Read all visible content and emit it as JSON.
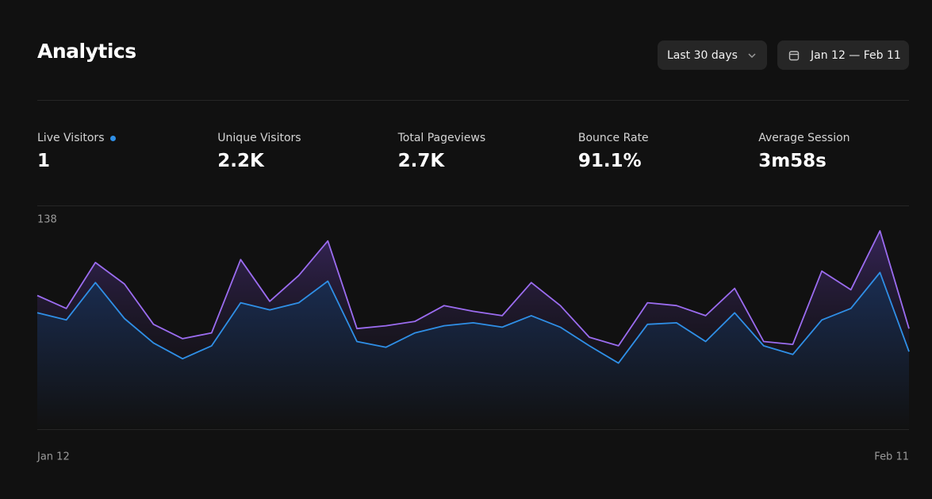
{
  "header": {
    "title": "Analytics",
    "range_button": "Last 30 days",
    "date_button": "Jan 12 — Feb 11"
  },
  "stats": [
    {
      "label": "Live Visitors",
      "value": "1"
    },
    {
      "label": "Unique Visitors",
      "value": "2.2K"
    },
    {
      "label": "Total Pageviews",
      "value": "2.7K"
    },
    {
      "label": "Bounce Rate",
      "value": "91.1%"
    },
    {
      "label": "Average Session",
      "value": "3m58s"
    }
  ],
  "chart_data": {
    "type": "area",
    "categories": [
      "Jan 12",
      null,
      null,
      null,
      null,
      null,
      null,
      null,
      null,
      null,
      null,
      null,
      null,
      null,
      null,
      null,
      null,
      null,
      null,
      null,
      null,
      null,
      null,
      null,
      null,
      null,
      null,
      null,
      null,
      null,
      "Feb 11"
    ],
    "series": [
      {
        "color": "#9b6cf0",
        "values": [
          93,
          84,
          116,
          101,
          73,
          63,
          67,
          118,
          89,
          107,
          131,
          70,
          72,
          75,
          86,
          82,
          79,
          102,
          86,
          64,
          58,
          88,
          86,
          79,
          98,
          61,
          59,
          110,
          97,
          138,
          70
        ]
      },
      {
        "color": "#2f8fe6",
        "values": [
          81,
          76,
          102,
          77,
          60,
          49,
          58,
          88,
          83,
          88,
          103,
          61,
          57,
          67,
          72,
          74,
          71,
          79,
          71,
          58,
          46,
          73,
          74,
          61,
          81,
          58,
          52,
          76,
          84,
          109,
          54
        ]
      }
    ],
    "ylim": [
      0,
      138
    ],
    "yticks": [
      138
    ]
  }
}
